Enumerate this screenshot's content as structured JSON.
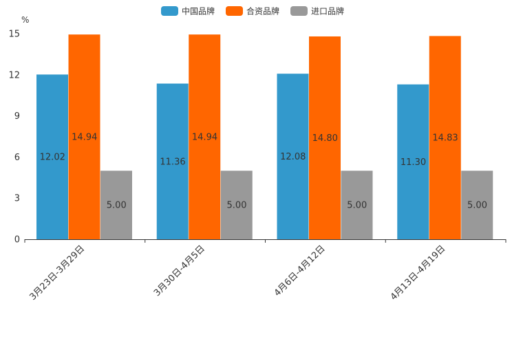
{
  "chart_data": {
    "type": "bar",
    "title": "",
    "xlabel": "",
    "ylabel": "%",
    "ylim": [
      0,
      15
    ],
    "yticks": [
      0,
      3,
      6,
      9,
      12,
      15
    ],
    "categories": [
      "3月23日-3月29日",
      "3月30日-4月5日",
      "4月6日-4月12日",
      "4月13日-4月19日"
    ],
    "series": [
      {
        "name": "中国品牌",
        "color": "#3399cc",
        "values": [
          12.02,
          11.36,
          12.08,
          11.3
        ],
        "labels": [
          "12.02",
          "11.36",
          "12.08",
          "11.30"
        ]
      },
      {
        "name": "合资品牌",
        "color": "#ff6600",
        "values": [
          14.94,
          14.94,
          14.8,
          14.83
        ],
        "labels": [
          "14.94",
          "14.94",
          "14.80",
          "14.83"
        ]
      },
      {
        "name": "进口品牌",
        "color": "#999999",
        "values": [
          5.0,
          5.0,
          5.0,
          5.0
        ],
        "labels": [
          "5.00",
          "5.00",
          "5.00",
          "5.00"
        ]
      }
    ],
    "legend_position": "top-center",
    "grid": false
  }
}
